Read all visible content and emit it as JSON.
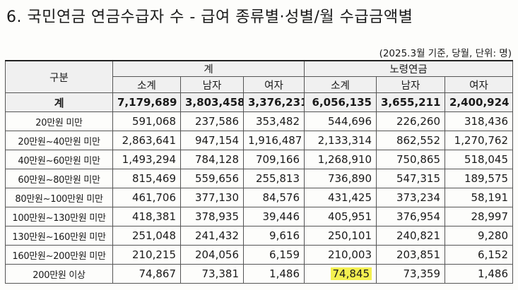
{
  "title": "6. 국민연금 연금수급자 수 - 급여 종류별·성별/월 수급금액별",
  "note": "(2025.3월 기준, 당월, 단위: 명)",
  "header": {
    "row_label": "구분",
    "groups": [
      "계",
      "노령연금"
    ],
    "subcols": [
      "소계",
      "남자",
      "여자",
      "소계",
      "남자",
      "여자"
    ]
  },
  "rows": [
    {
      "label": "계",
      "values": [
        "7,179,689",
        "3,803,458",
        "3,376,231",
        "6,056,135",
        "3,655,211",
        "2,400,924"
      ]
    },
    {
      "label": "20만원 미만",
      "values": [
        "591,068",
        "237,586",
        "353,482",
        "544,696",
        "226,260",
        "318,436"
      ]
    },
    {
      "label": "20만원~40만원 미만",
      "values": [
        "2,863,641",
        "947,154",
        "1,916,487",
        "2,133,314",
        "862,552",
        "1,270,762"
      ]
    },
    {
      "label": "40만원~60만원 미만",
      "values": [
        "1,493,294",
        "784,128",
        "709,166",
        "1,268,910",
        "750,865",
        "518,045"
      ]
    },
    {
      "label": "60만원~80만원 미만",
      "values": [
        "815,469",
        "559,656",
        "255,813",
        "736,890",
        "547,315",
        "189,575"
      ]
    },
    {
      "label": "80만원~100만원 미만",
      "values": [
        "461,706",
        "377,130",
        "84,576",
        "431,425",
        "373,234",
        "58,191"
      ]
    },
    {
      "label": "100만원~130만원 미만",
      "values": [
        "418,381",
        "378,935",
        "39,446",
        "405,951",
        "376,954",
        "28,997"
      ]
    },
    {
      "label": "130만원~160만원 미만",
      "values": [
        "251,048",
        "241,432",
        "9,616",
        "250,101",
        "240,821",
        "9,280"
      ]
    },
    {
      "label": "160만원~200만원 미만",
      "values": [
        "210,215",
        "204,056",
        "6,159",
        "210,003",
        "203,851",
        "6,152"
      ]
    },
    {
      "label": "200만원 이상",
      "values": [
        "74,867",
        "73,381",
        "1,486",
        "74,845",
        "73,359",
        "1,486"
      ]
    }
  ],
  "highlight": {
    "row": 9,
    "col": 3,
    "color": "#f4f050"
  }
}
